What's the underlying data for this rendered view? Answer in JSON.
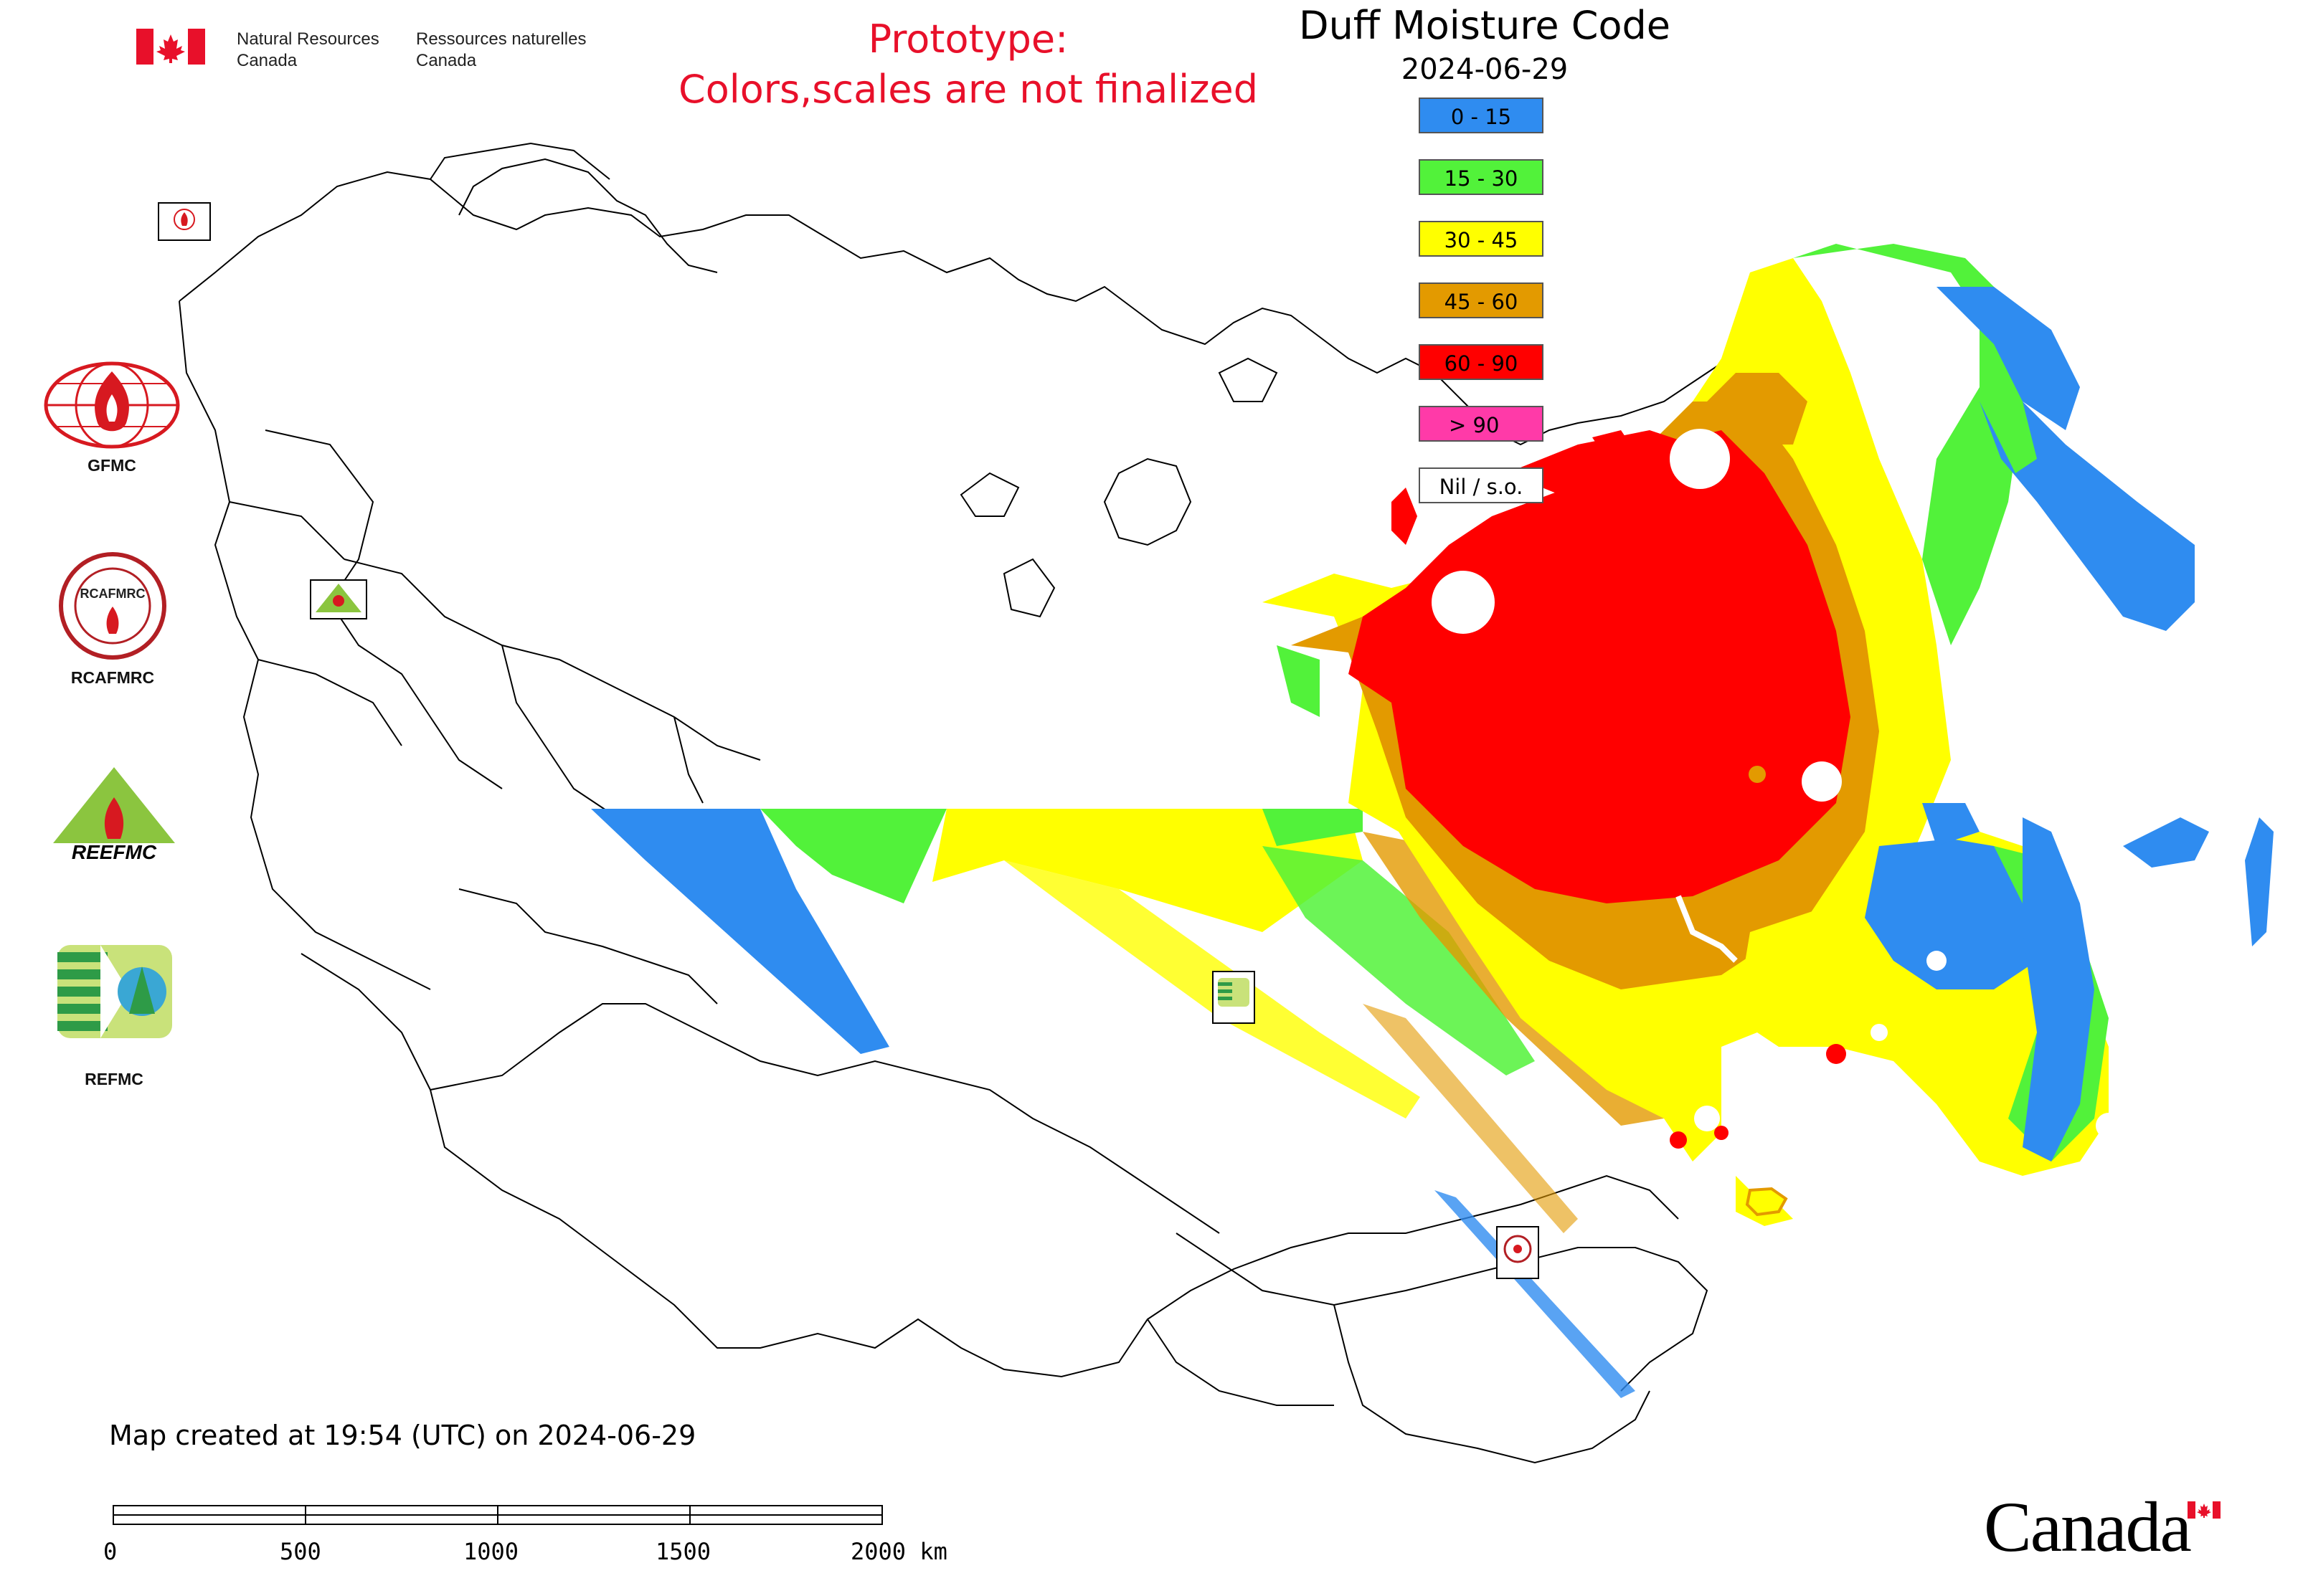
{
  "header": {
    "dept_en_line1": "Natural Resources",
    "dept_en_line2": "Canada",
    "dept_fr_line1": "Ressources naturelles",
    "dept_fr_line2": "Canada",
    "prototype_line1": "Prototype:",
    "prototype_line2": "Colors,scales are not finalized",
    "title": "Duff Moisture Code",
    "date": "2024-06-29"
  },
  "legend": [
    {
      "label": "0 - 15",
      "color": "#2f8cf0"
    },
    {
      "label": "15 - 30",
      "color": "#52f23a"
    },
    {
      "label": "30 - 45",
      "color": "#ffff00"
    },
    {
      "label": "45 - 60",
      "color": "#e39a00"
    },
    {
      "label": "60 - 90",
      "color": "#ff0000"
    },
    {
      "label": "> 90",
      "color": "#ff3aa8"
    },
    {
      "label": "Nil / s.o.",
      "color": "#ffffff"
    }
  ],
  "logos": {
    "gfmc": "GFMC",
    "rcafmrc": "RCAFMRC",
    "reefmc": "REEFMC",
    "refmc": "REFMC"
  },
  "footer": {
    "created": "Map created at 19:54 (UTC) on 2024-06-29",
    "scale_ticks": [
      "0",
      "500",
      "1000",
      "1500",
      "2000 km"
    ],
    "wordmark": "Canada"
  }
}
